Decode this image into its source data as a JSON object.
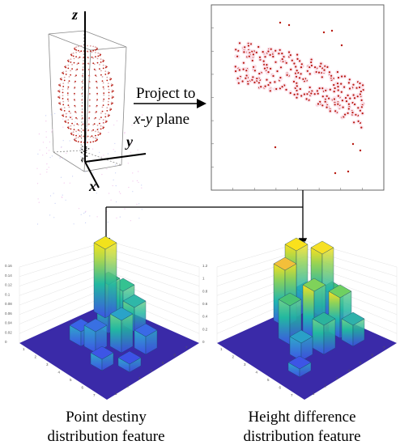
{
  "axes_3d": {
    "z": "z",
    "y": "y",
    "x": "x"
  },
  "projection_label": {
    "line1": "Project to",
    "line2_italic": "x-y",
    "line2_rest": " plane"
  },
  "captions": {
    "left_line1": "Point destiny",
    "left_line2": "distribution feature",
    "right_line1": "Height difference",
    "right_line2": "distribution feature"
  },
  "colors": {
    "point_red": "#b8190f",
    "arrow": "#000000",
    "bar_floor": "#3a2aa8",
    "bar_high": "#f5e51b",
    "bar_mid": "#22b8a0",
    "bar_low": "#3d52e6"
  },
  "chart_data": [
    {
      "type": "heatmap",
      "title": "",
      "y_ticks": [
        "0.16",
        "0.14",
        "0.12",
        "0.1",
        "0.08",
        "0.06",
        "0.04",
        "0.02",
        "0"
      ],
      "x_ticks": [
        "1",
        "2",
        "3",
        "4",
        "5",
        "6",
        "7"
      ],
      "y_ticks_side": [
        "1",
        "2",
        "3",
        "4",
        "5",
        "6",
        "7"
      ]
    },
    {
      "type": "heatmap",
      "title": "",
      "y_ticks": [
        "1.2",
        "1",
        "0.8",
        "0.6",
        "0.4",
        "0.2",
        "0"
      ],
      "x_ticks": [
        "1",
        "2",
        "3",
        "4",
        "5",
        "6",
        "7"
      ],
      "y_ticks_side": [
        "1",
        "2",
        "3",
        "4",
        "5",
        "6",
        "7"
      ]
    }
  ]
}
